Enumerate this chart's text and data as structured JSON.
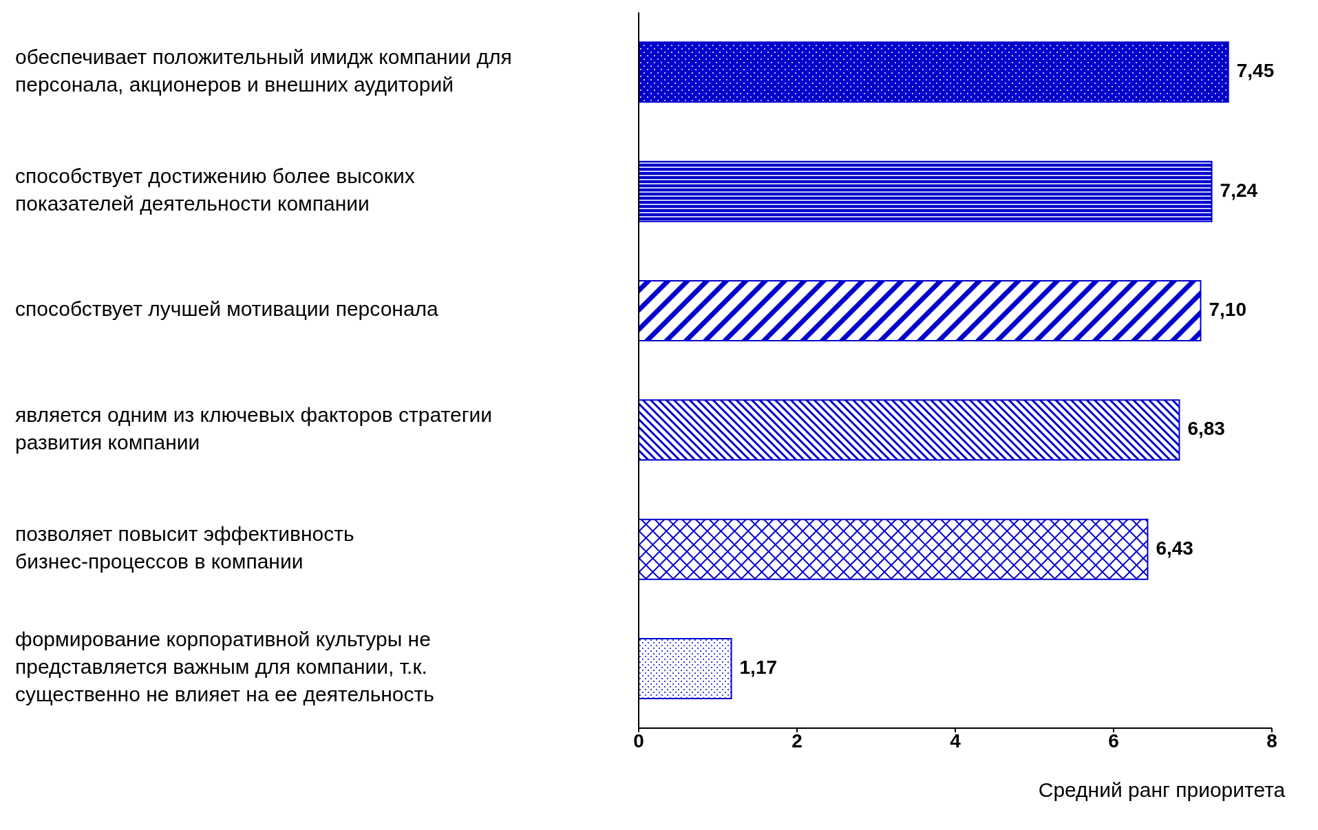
{
  "chart_data": {
    "type": "bar",
    "orientation": "horizontal",
    "xlabel": "Средний ранг приоритета",
    "categories": [
      "обеспечивает положительный имидж компании для персонала, акционеров и внешних аудиторий",
      "способствует достижению более высоких показателей деятельности компании",
      "способствует лучшей мотивации персонала",
      "является одним из ключевых факторов стратегии развития компании",
      "позволяет повысит эффективность бизнес-процессов  в компании",
      "формирование корпоративной культуры не представляется важным для компании, т.к. существенно не влияет на ее деятельность"
    ],
    "values": [
      7.45,
      7.24,
      7.1,
      6.83,
      6.43,
      1.17
    ],
    "value_labels": [
      "7,45",
      "7,24",
      "7,10",
      "6,83",
      "6,43",
      "1,17"
    ],
    "colors": [
      "#0000cc",
      "#0000cc",
      "#0000cc",
      "#0000cc",
      "#0000cc",
      "#0000cc"
    ],
    "xlim": [
      0,
      8
    ],
    "xticks": [
      0,
      2,
      4,
      6,
      8
    ],
    "grid": false,
    "legend": false
  }
}
